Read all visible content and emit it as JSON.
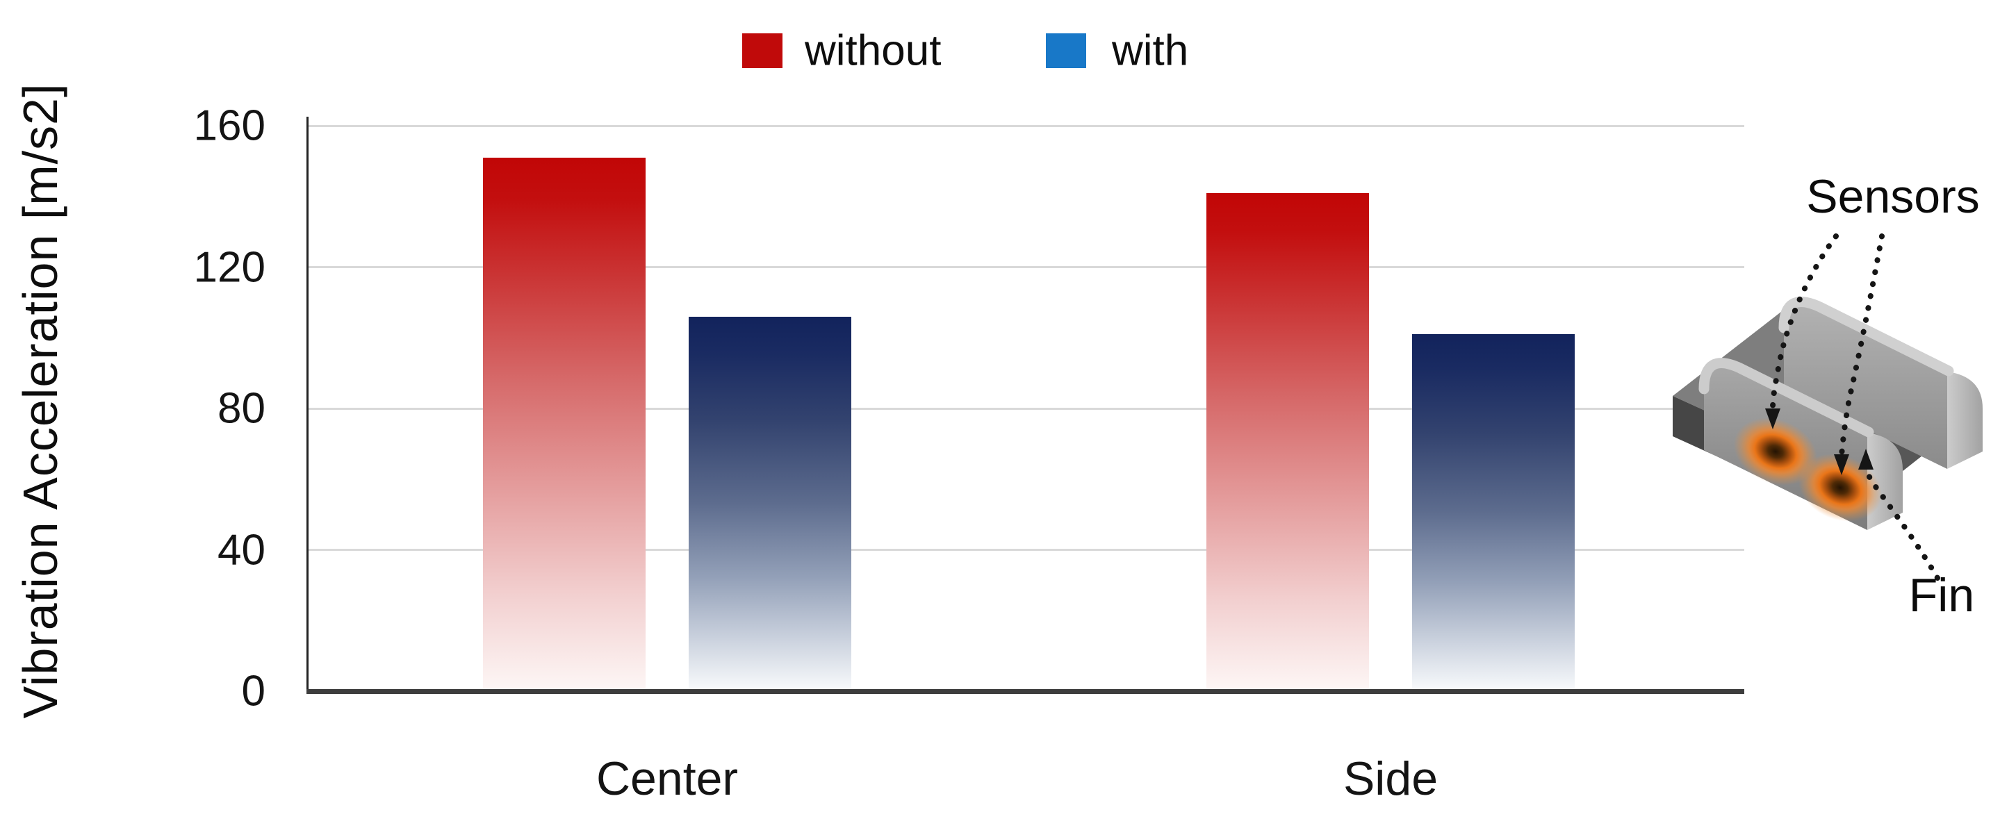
{
  "chart_data": {
    "type": "bar",
    "title": "",
    "ylabel": "Vibration Acceleration [m/s2]",
    "xlabel": "",
    "categories": [
      "Center",
      "Side"
    ],
    "series": [
      {
        "name": "without",
        "color": "#c00a0a",
        "values": [
          151,
          141
        ]
      },
      {
        "name": "with",
        "color": "#1878c8",
        "values": [
          106,
          101
        ]
      }
    ],
    "ylim": [
      0,
      160
    ],
    "yticks": [
      0,
      40,
      80,
      120,
      160
    ],
    "grid": "horizontal",
    "legend_position": "top-center"
  },
  "legend": {
    "items": [
      {
        "label": "without",
        "color": "#c00a0a"
      },
      {
        "label": "with",
        "color": "#1878c8"
      }
    ]
  },
  "illustration": {
    "sensors_label": "Sensors",
    "fin_label": "Fin",
    "glow_color": "#ea7518"
  }
}
